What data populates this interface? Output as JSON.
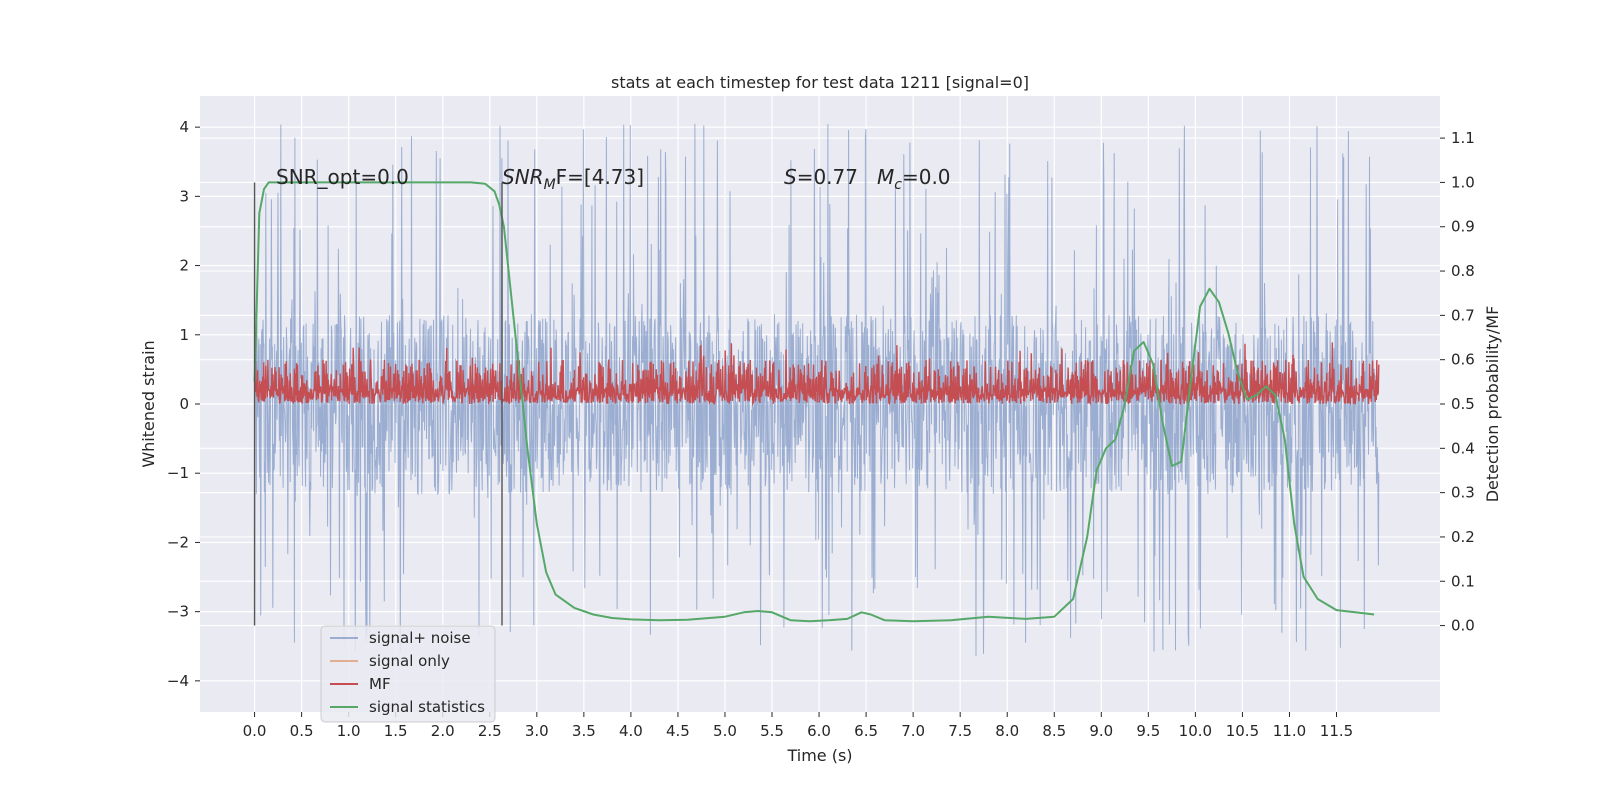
{
  "chart_data": {
    "type": "line",
    "title": "stats at each timestep for test data 1211 [signal=0]",
    "xlabel": "Time (s)",
    "ylabel_left": "Whitened strain",
    "ylabel_right": "Detection probability/MF",
    "xlim": [
      -0.58,
      12.6
    ],
    "ylim_left": [
      -4.45,
      4.45
    ],
    "ylim_right": [
      -0.195,
      1.195
    ],
    "x_ticks": [
      "0.0",
      "0.5",
      "1.0",
      "1.5",
      "2.0",
      "2.5",
      "3.0",
      "3.5",
      "4.0",
      "4.5",
      "5.0",
      "5.5",
      "6.0",
      "6.5",
      "7.0",
      "7.5",
      "8.0",
      "8.5",
      "9.0",
      "9.5",
      "10.0",
      "10.5",
      "11.0",
      "11.5"
    ],
    "y_ticks_left": [
      "4",
      "3",
      "2",
      "1",
      "0",
      "−1",
      "−2",
      "−3",
      "−4"
    ],
    "y_ticks_right": [
      "1.1",
      "1.0",
      "0.9",
      "0.8",
      "0.7",
      "0.6",
      "0.5",
      "0.4",
      "0.3",
      "0.2",
      "0.1",
      "0.0"
    ],
    "grid": true,
    "legend_position": "bottom-left",
    "annotations": {
      "snr_opt": "SNR_opt=0.0",
      "snr_mf_base": "SNR",
      "snr_mf_sub": "M",
      "snr_mf_rest": "F=[4.73]",
      "s_label": "S",
      "s_value": "=0.77",
      "mc_base": "M",
      "mc_sub": "c",
      "mc_value": "=0.0"
    },
    "vlines": [
      0.0,
      2.63
    ],
    "series": [
      {
        "name": "signal+ noise",
        "color": "#4c72b0",
        "axis": "left",
        "kind": "noise",
        "x_range": [
          0.0,
          11.95
        ],
        "band": [
          -1.3,
          1.3
        ],
        "extreme_max": 4.05,
        "extreme_min": -3.65
      },
      {
        "name": "signal only",
        "color": "#dd8452",
        "axis": "left",
        "values": []
      },
      {
        "name": "MF",
        "color": "#c44e52",
        "axis": "right",
        "kind": "mf",
        "x_range": [
          0.0,
          11.95
        ],
        "base": 0.5,
        "band": [
          0.5,
          0.6
        ],
        "extreme_max": 0.64
      },
      {
        "name": "signal statistics",
        "color": "#55a868",
        "axis": "right",
        "x": [
          0.0,
          0.05,
          0.1,
          0.15,
          0.2,
          0.4,
          0.8,
          1.2,
          1.6,
          2.0,
          2.3,
          2.45,
          2.55,
          2.6,
          2.65,
          2.7,
          2.8,
          2.9,
          3.0,
          3.1,
          3.2,
          3.4,
          3.6,
          3.8,
          4.0,
          4.3,
          4.6,
          5.0,
          5.2,
          5.35,
          5.5,
          5.7,
          5.9,
          6.1,
          6.3,
          6.45,
          6.55,
          6.7,
          7.0,
          7.4,
          7.8,
          8.2,
          8.5,
          8.7,
          8.85,
          8.95,
          9.05,
          9.15,
          9.25,
          9.35,
          9.45,
          9.55,
          9.65,
          9.75,
          9.85,
          9.95,
          10.05,
          10.15,
          10.25,
          10.35,
          10.45,
          10.55,
          10.65,
          10.75,
          10.85,
          10.95,
          11.05,
          11.15,
          11.3,
          11.5,
          11.7,
          11.9
        ],
        "y": [
          0.55,
          0.93,
          0.985,
          1.0,
          1.0,
          1.0,
          1.0,
          1.0,
          1.0,
          1.0,
          1.0,
          0.997,
          0.98,
          0.95,
          0.9,
          0.8,
          0.6,
          0.4,
          0.23,
          0.12,
          0.07,
          0.04,
          0.025,
          0.017,
          0.014,
          0.012,
          0.013,
          0.02,
          0.03,
          0.033,
          0.03,
          0.012,
          0.01,
          0.012,
          0.015,
          0.03,
          0.025,
          0.012,
          0.01,
          0.012,
          0.02,
          0.015,
          0.02,
          0.06,
          0.2,
          0.35,
          0.4,
          0.42,
          0.5,
          0.62,
          0.64,
          0.59,
          0.46,
          0.36,
          0.37,
          0.55,
          0.72,
          0.76,
          0.73,
          0.66,
          0.57,
          0.51,
          0.52,
          0.54,
          0.52,
          0.42,
          0.23,
          0.11,
          0.06,
          0.035,
          0.03,
          0.025
        ]
      }
    ]
  }
}
